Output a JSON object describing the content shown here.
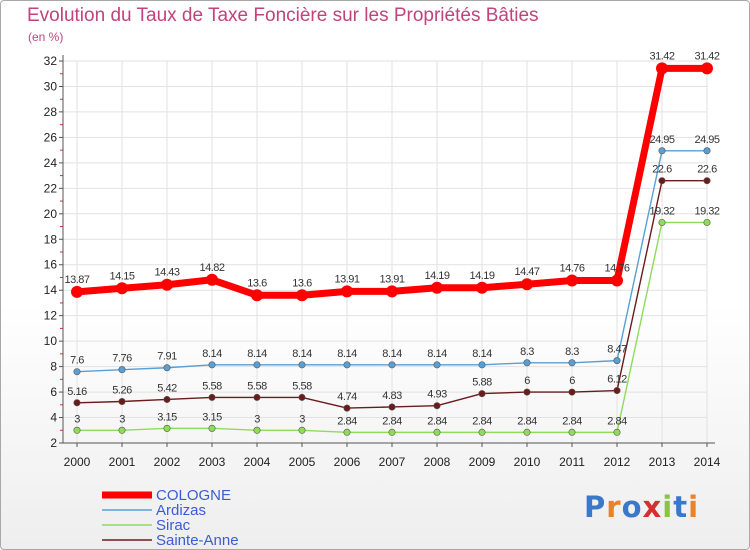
{
  "chart_data": {
    "type": "line",
    "title": "Evolution du Taux de Taxe Foncière sur les Propriétés Bâties",
    "ylabel": "(en %)",
    "xlabel": "",
    "ylim": [
      2,
      32
    ],
    "yticks": [
      2,
      4,
      6,
      8,
      10,
      12,
      14,
      16,
      18,
      20,
      22,
      24,
      26,
      28,
      30,
      32
    ],
    "categories": [
      "2000",
      "2001",
      "2002",
      "2003",
      "2004",
      "2005",
      "2006",
      "2007",
      "2008",
      "2009",
      "2010",
      "2011",
      "2012",
      "2013",
      "2014"
    ],
    "series": [
      {
        "name": "COLOGNE",
        "color": "#ff0000",
        "values": [
          13.87,
          14.15,
          14.43,
          14.82,
          13.6,
          13.6,
          13.91,
          13.91,
          14.19,
          14.19,
          14.47,
          14.76,
          14.76,
          31.42,
          31.42
        ],
        "labels": [
          "13.87",
          "14.15",
          "14.43",
          "14.82",
          "13.6",
          "13.6",
          "13.91",
          "13.91",
          "14.19",
          "14.19",
          "14.47",
          "14.76",
          "14.76",
          "31.42",
          "31.42"
        ]
      },
      {
        "name": "Ardizas",
        "color": "#5a9fd4",
        "values": [
          7.6,
          7.76,
          7.91,
          8.14,
          8.14,
          8.14,
          8.14,
          8.14,
          8.14,
          8.14,
          8.3,
          8.3,
          8.47,
          24.95,
          24.95
        ],
        "labels": [
          "7.6",
          "7.76",
          "7.91",
          "8.14",
          "8.14",
          "8.14",
          "8.14",
          "8.14",
          "8.14",
          "8.14",
          "8.3",
          "8.3",
          "8.47",
          "24.95",
          "24.95"
        ]
      },
      {
        "name": "Sirac",
        "color": "#8fdc5a",
        "values": [
          3,
          3,
          3.15,
          3.15,
          3,
          3,
          2.84,
          2.84,
          2.84,
          2.84,
          2.84,
          2.84,
          2.84,
          19.32,
          19.32
        ],
        "labels": [
          "3",
          "3",
          "3.15",
          "3.15",
          "3",
          "3",
          "2.84",
          "2.84",
          "2.84",
          "2.84",
          "2.84",
          "2.84",
          "2.84",
          "19.32",
          "19.32"
        ]
      },
      {
        "name": "Sainte-Anne",
        "color": "#6b1b1b",
        "values": [
          5.16,
          5.26,
          5.42,
          5.58,
          5.58,
          5.58,
          4.74,
          4.83,
          4.93,
          5.88,
          6,
          6,
          6.12,
          22.6,
          22.6
        ],
        "labels": [
          "5.16",
          "5.26",
          "5.42",
          "5.58",
          "5.58",
          "5.58",
          "4.74",
          "4.83",
          "4.93",
          "5.88",
          "6",
          "6",
          "6.12",
          "22.6",
          "22.6"
        ]
      }
    ],
    "legend": "bottom-left"
  },
  "logo": {
    "text": "Proxiti",
    "colors": [
      "#3a78c9",
      "#e8832a",
      "#3a78c9",
      "#d62f2f",
      "#8bc53f",
      "#3a78c9",
      "#e8832a"
    ]
  }
}
